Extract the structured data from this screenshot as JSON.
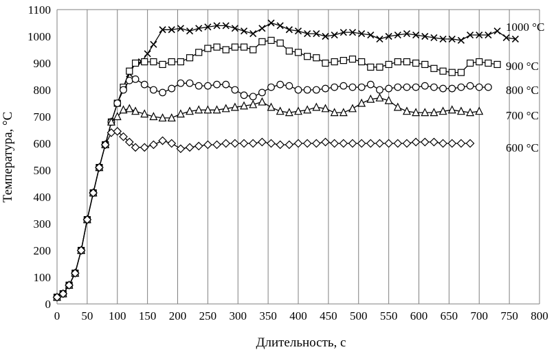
{
  "chart_data": {
    "type": "line",
    "title": "",
    "xlabel": "Длительность, с",
    "ylabel": "Температура, °С",
    "xlim": [
      0,
      800
    ],
    "ylim": [
      0,
      1100
    ],
    "x_ticks": [
      0,
      50,
      100,
      150,
      200,
      250,
      300,
      350,
      400,
      450,
      500,
      550,
      600,
      650,
      700,
      750,
      800
    ],
    "y_ticks": [
      0,
      100,
      200,
      300,
      400,
      500,
      600,
      700,
      800,
      900,
      1000,
      1100
    ],
    "grid": "vertical",
    "legend": "none (series labels at right)",
    "series": [
      {
        "name": "1000 °С",
        "marker": "x",
        "x": [
          0,
          10,
          20,
          30,
          40,
          50,
          60,
          70,
          80,
          90,
          100,
          110,
          120,
          130,
          140,
          150,
          160,
          175,
          190,
          205,
          220,
          235,
          250,
          265,
          280,
          295,
          310,
          325,
          340,
          355,
          370,
          385,
          400,
          415,
          430,
          445,
          460,
          475,
          490,
          505,
          520,
          535,
          550,
          565,
          580,
          595,
          610,
          625,
          640,
          655,
          670,
          685,
          700,
          715,
          730,
          745,
          760
        ],
        "values": [
          25,
          38,
          70,
          115,
          200,
          315,
          415,
          510,
          595,
          680,
          750,
          810,
          860,
          900,
          905,
          935,
          970,
          1025,
          1025,
          1030,
          1020,
          1030,
          1035,
          1040,
          1040,
          1030,
          1020,
          1010,
          1030,
          1050,
          1040,
          1025,
          1020,
          1010,
          1010,
          1000,
          1005,
          1015,
          1015,
          1010,
          1005,
          990,
          1000,
          1005,
          1010,
          1005,
          1000,
          995,
          990,
          990,
          985,
          1005,
          1005,
          1005,
          1020,
          995,
          990
        ]
      },
      {
        "name": "900 °С",
        "marker": "square",
        "x": [
          0,
          10,
          20,
          30,
          40,
          50,
          60,
          70,
          80,
          90,
          100,
          110,
          120,
          130,
          145,
          160,
          175,
          190,
          205,
          220,
          235,
          250,
          265,
          280,
          295,
          310,
          325,
          340,
          355,
          370,
          385,
          400,
          415,
          430,
          445,
          460,
          475,
          490,
          505,
          520,
          535,
          550,
          565,
          580,
          595,
          610,
          625,
          640,
          655,
          670,
          685,
          700,
          715,
          730
        ],
        "values": [
          25,
          38,
          70,
          115,
          200,
          315,
          415,
          510,
          595,
          680,
          750,
          810,
          870,
          900,
          905,
          905,
          895,
          905,
          905,
          920,
          940,
          955,
          960,
          950,
          960,
          960,
          950,
          980,
          985,
          975,
          945,
          940,
          925,
          920,
          900,
          905,
          910,
          915,
          905,
          885,
          885,
          895,
          905,
          905,
          900,
          895,
          880,
          870,
          865,
          865,
          900,
          905,
          900,
          895
        ]
      },
      {
        "name": "800 °С",
        "marker": "circle",
        "x": [
          0,
          10,
          20,
          30,
          40,
          50,
          60,
          70,
          80,
          90,
          100,
          110,
          120,
          130,
          145,
          160,
          175,
          190,
          205,
          220,
          235,
          250,
          265,
          280,
          295,
          310,
          325,
          340,
          355,
          370,
          385,
          400,
          415,
          430,
          445,
          460,
          475,
          490,
          505,
          520,
          535,
          550,
          565,
          580,
          595,
          610,
          625,
          640,
          655,
          670,
          685,
          700,
          715
        ],
        "values": [
          25,
          38,
          70,
          115,
          200,
          315,
          415,
          510,
          595,
          680,
          750,
          800,
          835,
          840,
          820,
          800,
          790,
          805,
          825,
          825,
          815,
          815,
          820,
          820,
          800,
          780,
          775,
          790,
          810,
          820,
          815,
          800,
          800,
          800,
          805,
          810,
          815,
          810,
          810,
          820,
          800,
          805,
          810,
          810,
          810,
          815,
          810,
          805,
          805,
          810,
          815,
          810,
          810
        ]
      },
      {
        "name": "700 °С",
        "marker": "triangle",
        "x": [
          0,
          10,
          20,
          30,
          40,
          50,
          60,
          70,
          80,
          90,
          100,
          110,
          120,
          130,
          145,
          160,
          175,
          190,
          205,
          220,
          235,
          250,
          265,
          280,
          295,
          310,
          325,
          340,
          355,
          370,
          385,
          400,
          415,
          430,
          445,
          460,
          475,
          490,
          505,
          520,
          535,
          550,
          565,
          580,
          595,
          610,
          625,
          640,
          655,
          670,
          685,
          700
        ],
        "values": [
          25,
          38,
          70,
          115,
          200,
          315,
          415,
          510,
          595,
          680,
          700,
          725,
          730,
          720,
          710,
          700,
          695,
          695,
          710,
          720,
          725,
          725,
          725,
          730,
          735,
          740,
          745,
          755,
          735,
          720,
          715,
          720,
          725,
          735,
          730,
          715,
          715,
          730,
          750,
          765,
          770,
          760,
          735,
          720,
          715,
          715,
          715,
          720,
          725,
          720,
          715,
          720
        ]
      },
      {
        "name": "600 °С",
        "marker": "diamond",
        "x": [
          0,
          10,
          20,
          30,
          40,
          50,
          60,
          70,
          80,
          90,
          100,
          110,
          120,
          130,
          145,
          160,
          175,
          190,
          205,
          220,
          235,
          250,
          265,
          280,
          295,
          310,
          325,
          340,
          355,
          370,
          385,
          400,
          415,
          430,
          445,
          460,
          475,
          490,
          505,
          520,
          535,
          550,
          565,
          580,
          595,
          610,
          625,
          640,
          655,
          670,
          685
        ],
        "values": [
          25,
          38,
          70,
          115,
          200,
          315,
          415,
          510,
          595,
          640,
          645,
          625,
          605,
          585,
          585,
          595,
          610,
          600,
          580,
          585,
          590,
          595,
          595,
          600,
          600,
          600,
          600,
          605,
          600,
          595,
          595,
          600,
          600,
          600,
          605,
          600,
          600,
          600,
          600,
          600,
          600,
          600,
          600,
          600,
          605,
          605,
          605,
          600,
          600,
          600,
          600
        ]
      }
    ]
  }
}
